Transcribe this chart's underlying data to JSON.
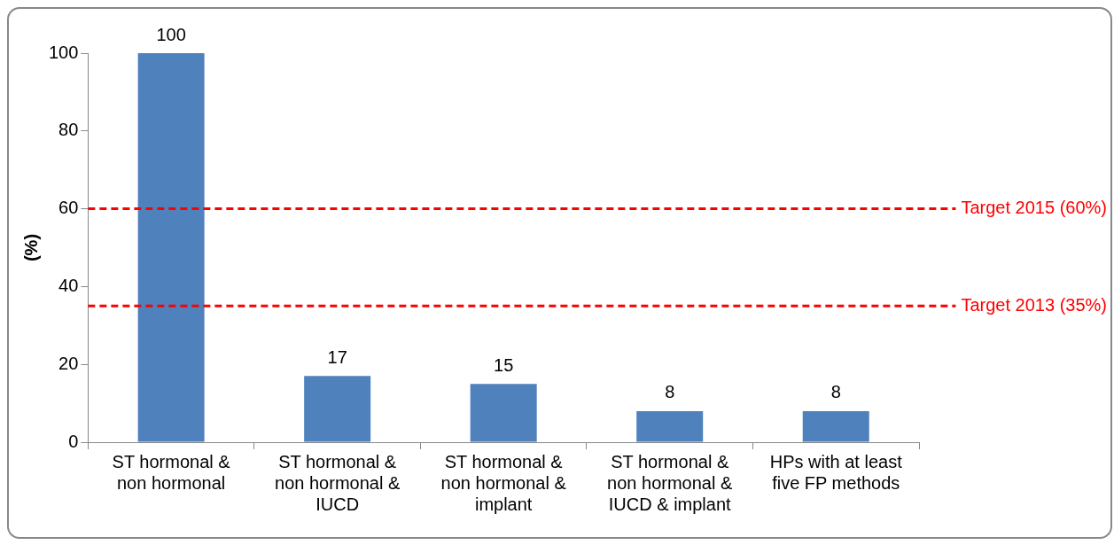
{
  "chart_data": {
    "type": "bar",
    "ylabel": "(%)",
    "categories": [
      "ST hormonal & non hormonal",
      "ST hormonal & non hormonal & IUCD",
      "ST hormonal & non hormonal & implant",
      "ST hormonal & non hormonal & IUCD & implant",
      "HPs with at least five FP methods"
    ],
    "values": [
      100,
      17,
      15,
      8,
      8
    ],
    "color": "#4f81bd",
    "ylim": [
      0,
      100
    ],
    "yticks": [
      0,
      20,
      40,
      60,
      80,
      100
    ],
    "data_labels": true,
    "grid": false,
    "legend": false,
    "ref_lines": [
      {
        "axis": "y",
        "value": 60,
        "label": "Target 2015 (60%)",
        "color": "#ff0000",
        "line_style": "dashed"
      },
      {
        "axis": "y",
        "value": 35,
        "label": "Target 2013 (35%)",
        "color": "#ff0000",
        "line_style": "dashed"
      }
    ]
  }
}
